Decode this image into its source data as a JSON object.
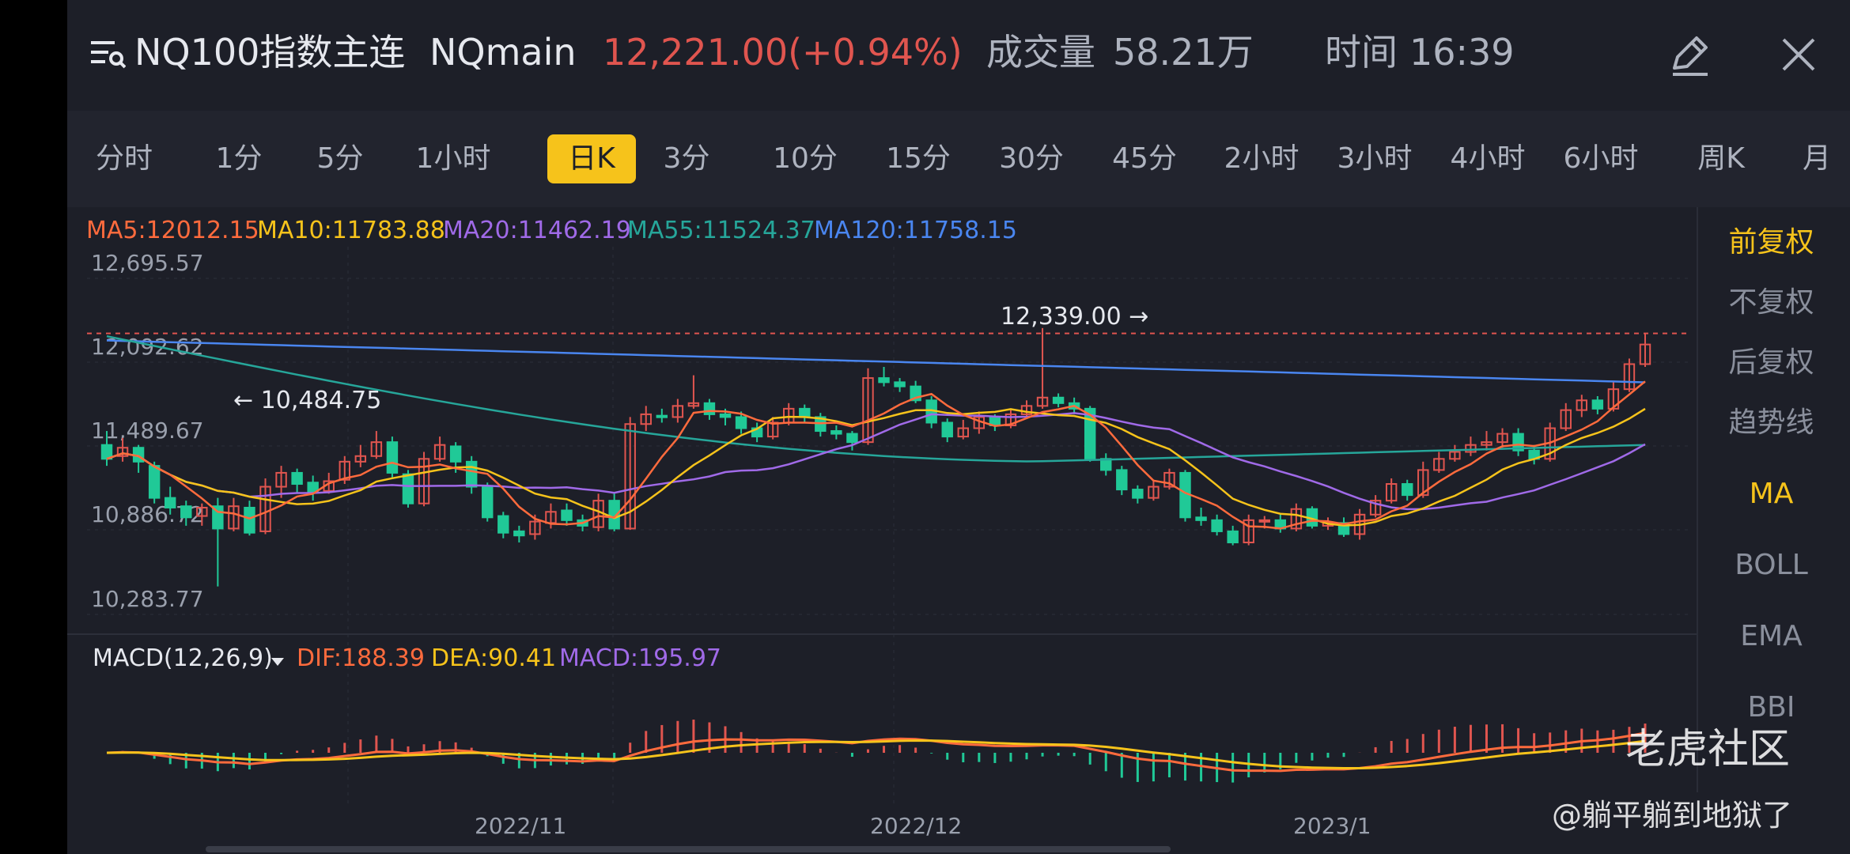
{
  "header": {
    "title": "NQ100指数主连",
    "symbol": "NQmain",
    "price": "12,221.00(+0.94%)",
    "volume_label": "成交量",
    "volume_value": "58.21万",
    "time_label": "时间",
    "time_value": "16:39",
    "icons": [
      "menu-search-icon",
      "edit-icon",
      "close-icon"
    ]
  },
  "periods": [
    "分时",
    "1分",
    "5分",
    "1小时",
    "日K",
    "3分",
    "10分",
    "15分",
    "30分",
    "45分",
    "2小时",
    "3小时",
    "4小时",
    "6小时",
    "周K",
    "月"
  ],
  "active_period": "日K",
  "ma": {
    "ma5": "MA5:12012.15",
    "ma10": "MA10:11783.88",
    "ma20": "MA20:11462.19",
    "ma55": "MA55:11524.37",
    "ma120": "MA120:11758.15"
  },
  "y_ticks": [
    "12,695.57",
    "12,092.62",
    "11,489.67",
    "10,886.72",
    "10,283.77"
  ],
  "high_label": "12,339.00 →",
  "low_label": "← 10,484.75",
  "macd": {
    "title": "MACD(12,26,9)",
    "dif": "DIF:188.39",
    "dea": "DEA:90.41",
    "macd": "MACD:195.97"
  },
  "x_ticks": [
    "2022/11",
    "2022/12",
    "2023/1"
  ],
  "side": {
    "items": [
      "前复权",
      "不复权",
      "后复权",
      "趋势线",
      "MA",
      "BOLL",
      "EMA",
      "BBI"
    ]
  },
  "watermark": {
    "brand": "老虎社区",
    "user": "@躺平躺到地狱了"
  },
  "colors": {
    "up": "#e0554f",
    "down": "#20c997",
    "ma5": "#ff6b3d",
    "ma10": "#f6c31b",
    "ma20": "#a06ae8",
    "ma55": "#26a69a",
    "ma120": "#4a86f0"
  },
  "chart_data": {
    "type": "candlestick",
    "y_range": [
      10283.77,
      12695.57
    ],
    "candles": [
      [
        11500,
        11400,
        11600,
        11350
      ],
      [
        11420,
        11480,
        11550,
        11380
      ],
      [
        11480,
        11380,
        11500,
        11300
      ],
      [
        11350,
        11120,
        11380,
        11080
      ],
      [
        11120,
        11050,
        11200,
        11000
      ],
      [
        11060,
        10980,
        11100,
        10920
      ],
      [
        10990,
        11050,
        11080,
        10920
      ],
      [
        11060,
        10900,
        11120,
        10484.75
      ],
      [
        10900,
        11060,
        11120,
        10880
      ],
      [
        11050,
        10870,
        11100,
        10850
      ],
      [
        10880,
        11200,
        11260,
        10860
      ],
      [
        11200,
        11300,
        11350,
        11120
      ],
      [
        11300,
        11220,
        11330,
        11150
      ],
      [
        11230,
        11160,
        11280,
        11100
      ],
      [
        11170,
        11240,
        11300,
        11150
      ],
      [
        11250,
        11380,
        11420,
        11220
      ],
      [
        11380,
        11420,
        11500,
        11340
      ],
      [
        11420,
        11520,
        11600,
        11400
      ],
      [
        11520,
        11300,
        11560,
        11260
      ],
      [
        11290,
        11080,
        11320,
        11050
      ],
      [
        11080,
        11400,
        11450,
        11060
      ],
      [
        11400,
        11500,
        11560,
        11380
      ],
      [
        11490,
        11380,
        11520,
        11300
      ],
      [
        11380,
        11200,
        11420,
        11150
      ],
      [
        11200,
        10980,
        11230,
        10950
      ],
      [
        10990,
        10870,
        11020,
        10830
      ],
      [
        10880,
        10850,
        10920,
        10800
      ],
      [
        10860,
        10950,
        11000,
        10820
      ],
      [
        10940,
        11020,
        11080,
        10900
      ],
      [
        11030,
        10960,
        11080,
        10920
      ],
      [
        10960,
        10920,
        11000,
        10880
      ],
      [
        10910,
        11100,
        11150,
        10880
      ],
      [
        11100,
        10900,
        11150,
        10880
      ],
      [
        10900,
        11650,
        11700,
        10890
      ],
      [
        11650,
        11720,
        11780,
        11600
      ],
      [
        11710,
        11700,
        11760,
        11660
      ],
      [
        11700,
        11780,
        11830,
        11660
      ],
      [
        11780,
        11800,
        12000,
        11760
      ],
      [
        11800,
        11720,
        11830,
        11680
      ],
      [
        11720,
        11700,
        11760,
        11640
      ],
      [
        11700,
        11620,
        11740,
        11580
      ],
      [
        11620,
        11560,
        11660,
        11520
      ],
      [
        11560,
        11660,
        11700,
        11540
      ],
      [
        11660,
        11760,
        11800,
        11640
      ],
      [
        11760,
        11700,
        11790,
        11660
      ],
      [
        11700,
        11600,
        11730,
        11560
      ],
      [
        11600,
        11580,
        11640,
        11540
      ],
      [
        11580,
        11520,
        11600,
        11460
      ],
      [
        11520,
        11980,
        12050,
        11500
      ],
      [
        11980,
        11950,
        12060,
        11920
      ],
      [
        11950,
        11920,
        11980,
        11880
      ],
      [
        11920,
        11820,
        11960,
        11800
      ],
      [
        11820,
        11660,
        11850,
        11620
      ],
      [
        11660,
        11560,
        11690,
        11520
      ],
      [
        11560,
        11620,
        11680,
        11540
      ],
      [
        11620,
        11700,
        11740,
        11580
      ],
      [
        11700,
        11640,
        11720,
        11600
      ],
      [
        11640,
        11720,
        11760,
        11620
      ],
      [
        11720,
        11780,
        11820,
        11700
      ],
      [
        11780,
        11840,
        12339,
        11760
      ],
      [
        11840,
        11800,
        11870,
        11770
      ],
      [
        11800,
        11760,
        11840,
        11720
      ],
      [
        11760,
        11400,
        11780,
        11380
      ],
      [
        11400,
        11320,
        11440,
        11280
      ],
      [
        11320,
        11180,
        11350,
        11140
      ],
      [
        11180,
        11120,
        11210,
        11080
      ],
      [
        11120,
        11200,
        11250,
        11100
      ],
      [
        11200,
        11300,
        11330,
        11180
      ],
      [
        11300,
        10980,
        11320,
        10950
      ],
      [
        10980,
        10960,
        11050,
        10920
      ],
      [
        10960,
        10880,
        11000,
        10850
      ],
      [
        10880,
        10800,
        10920,
        10780
      ],
      [
        10800,
        10960,
        11000,
        10780
      ],
      [
        10960,
        10960,
        10990,
        10900
      ],
      [
        10960,
        10900,
        11000,
        10870
      ],
      [
        10900,
        11040,
        11080,
        10880
      ],
      [
        11040,
        10920,
        11060,
        10900
      ],
      [
        10920,
        10940,
        10980,
        10890
      ],
      [
        10940,
        10860,
        10980,
        10840
      ],
      [
        10860,
        11000,
        11040,
        10820
      ],
      [
        11000,
        11100,
        11140,
        10980
      ],
      [
        11100,
        11220,
        11260,
        11080
      ],
      [
        11220,
        11140,
        11250,
        11100
      ],
      [
        11140,
        11320,
        11380,
        11120
      ],
      [
        11320,
        11400,
        11450,
        11300
      ],
      [
        11400,
        11450,
        11500,
        11380
      ],
      [
        11450,
        11500,
        11560,
        11420
      ],
      [
        11500,
        11520,
        11600,
        11460
      ],
      [
        11520,
        11580,
        11620,
        11480
      ],
      [
        11580,
        11460,
        11620,
        11420
      ],
      [
        11460,
        11400,
        11500,
        11360
      ],
      [
        11400,
        11620,
        11660,
        11380
      ],
      [
        11620,
        11750,
        11800,
        11600
      ],
      [
        11750,
        11820,
        11860,
        11700
      ],
      [
        11820,
        11760,
        11850,
        11720
      ],
      [
        11760,
        11900,
        11960,
        11740
      ],
      [
        11900,
        12080,
        12120,
        11880
      ],
      [
        12080,
        12221,
        12300,
        12060
      ]
    ]
  }
}
